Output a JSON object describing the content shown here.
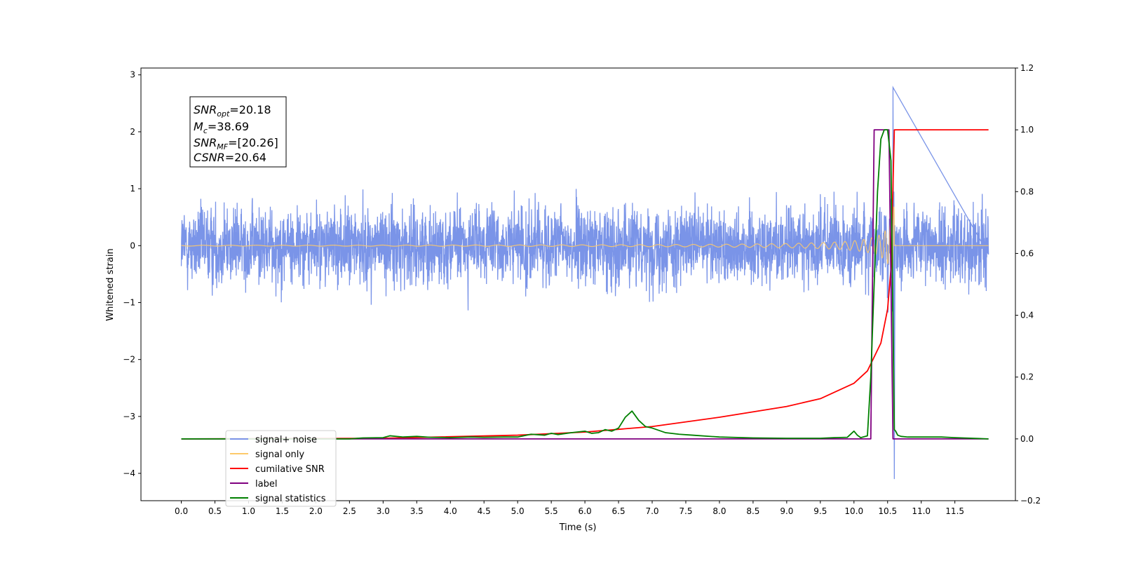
{
  "chart_data": {
    "type": "line",
    "xlabel": "Time (s)",
    "ylabel": "Whitened strain",
    "xlim": [
      -0.6,
      12.4
    ],
    "ylim": [
      -4.48,
      3.12
    ],
    "y2lim": [
      -0.2,
      1.2
    ],
    "x_ticks": [
      "0.0",
      "0.5",
      "1.0",
      "1.5",
      "2.0",
      "2.5",
      "3.0",
      "3.5",
      "4.0",
      "4.5",
      "5.0",
      "5.5",
      "6.0",
      "6.5",
      "7.0",
      "7.5",
      "8.0",
      "8.5",
      "9.0",
      "9.5",
      "10.0",
      "10.5",
      "11.0",
      "11.5"
    ],
    "y_ticks": [
      "3",
      "2",
      "1",
      "0",
      "−1",
      "−2",
      "−3",
      "−4"
    ],
    "y2_ticks": [
      "1.2",
      "1.0",
      "0.8",
      "0.6",
      "0.4",
      "0.2",
      "0.0",
      "−0.2"
    ],
    "info_box": {
      "snr_opt": {
        "var": "SNR",
        "sub": "opt",
        "val": "=20.18"
      },
      "mc": {
        "var": "M",
        "sub": "c",
        "val": "=38.69"
      },
      "snr_mf": {
        "var": "SNR",
        "sub": "MF",
        "val": "=[20.26]"
      },
      "csnr": {
        "var": "CSNR",
        "val": "=20.64"
      }
    },
    "legend": {
      "placement": "lower-left",
      "entries": [
        {
          "label": "signal+ noise",
          "color": "#7a94e8"
        },
        {
          "label": "signal only",
          "color": "#fdc96a"
        },
        {
          "label": "cumilative SNR",
          "color": "#ff0000"
        },
        {
          "label": "label",
          "color": "#800080"
        },
        {
          "label": "signal statistics",
          "color": "#008000"
        }
      ]
    },
    "series": [
      {
        "name": "signal+ noise",
        "axis": "left",
        "color": "#7a94e8",
        "time_range": [
          0.0,
          12.0
        ],
        "envelope_amplitude": 1.25,
        "extremes": {
          "max": 2.78,
          "max_time": 10.58,
          "min": -4.1,
          "min_time": 10.6
        }
      },
      {
        "name": "signal only",
        "axis": "left",
        "color": "#fdc96a",
        "time_range": [
          0.0,
          12.0
        ],
        "merger_time": 10.6,
        "peak_amplitude": 2.5
      },
      {
        "name": "cumilative SNR",
        "axis": "right",
        "color": "#ff0000",
        "x": [
          0.0,
          3.0,
          5.0,
          6.0,
          7.0,
          8.0,
          9.0,
          9.5,
          10.0,
          10.2,
          10.4,
          10.5,
          10.55,
          10.6,
          11.0,
          12.0
        ],
        "y": [
          0.0,
          0.002,
          0.012,
          0.022,
          0.04,
          0.07,
          0.105,
          0.13,
          0.18,
          0.22,
          0.31,
          0.42,
          0.55,
          1.0,
          1.0,
          1.0
        ]
      },
      {
        "name": "label",
        "axis": "right",
        "color": "#800080",
        "x": [
          0.0,
          10.25,
          10.3,
          10.52,
          10.58,
          12.0
        ],
        "y": [
          0.0,
          0.0,
          1.0,
          1.0,
          0.0,
          0.0
        ]
      },
      {
        "name": "signal statistics",
        "axis": "right",
        "color": "#008000",
        "x": [
          0.0,
          2.5,
          2.7,
          3.0,
          3.1,
          3.3,
          3.5,
          3.7,
          4.0,
          4.3,
          4.5,
          4.8,
          5.0,
          5.2,
          5.4,
          5.5,
          5.6,
          5.8,
          6.0,
          6.1,
          6.2,
          6.3,
          6.4,
          6.5,
          6.6,
          6.7,
          6.8,
          6.9,
          7.0,
          7.2,
          7.4,
          7.6,
          8.0,
          8.5,
          9.0,
          9.5,
          9.7,
          9.9,
          10.0,
          10.05,
          10.1,
          10.2,
          10.25,
          10.3,
          10.35,
          10.4,
          10.45,
          10.5,
          10.55,
          10.6,
          10.62,
          10.65,
          10.7,
          10.8,
          11.0,
          11.3,
          11.5,
          12.0
        ],
        "y": [
          0.0,
          0.0,
          0.003,
          0.004,
          0.01,
          0.006,
          0.008,
          0.005,
          0.004,
          0.006,
          0.005,
          0.006,
          0.006,
          0.015,
          0.012,
          0.018,
          0.014,
          0.02,
          0.025,
          0.018,
          0.02,
          0.03,
          0.025,
          0.035,
          0.07,
          0.09,
          0.06,
          0.04,
          0.035,
          0.02,
          0.015,
          0.012,
          0.006,
          0.003,
          0.002,
          0.002,
          0.004,
          0.005,
          0.025,
          0.012,
          0.004,
          0.01,
          0.2,
          0.5,
          0.8,
          0.97,
          1.0,
          1.0,
          0.9,
          0.03,
          0.025,
          0.012,
          0.008,
          0.006,
          0.006,
          0.006,
          0.004,
          0.0
        ]
      }
    ]
  }
}
